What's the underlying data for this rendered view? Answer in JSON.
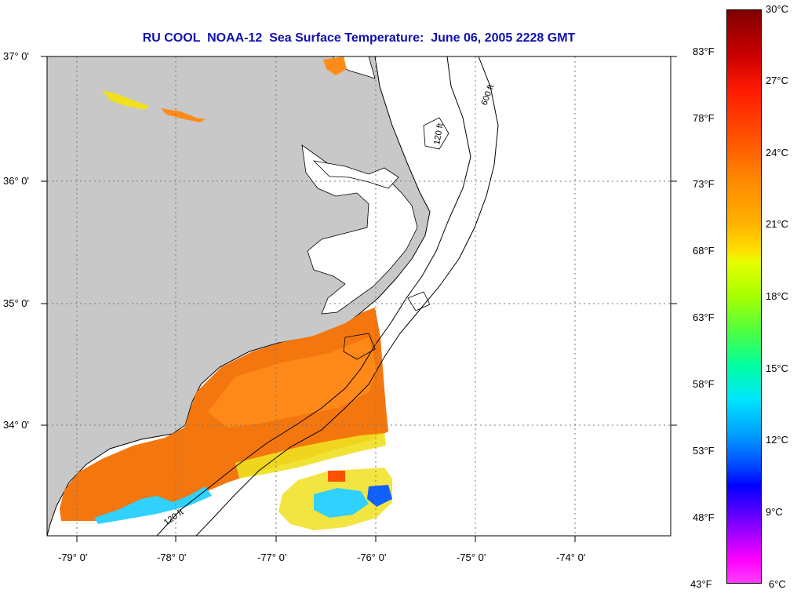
{
  "title": "RU COOL  NOAA-12  Sea Surface Temperature:  June 06, 2005 2228 GMT",
  "lat_labels": [
    {
      "text": "37° 0'",
      "lat": 37
    },
    {
      "text": "36° 0'",
      "lat": 36
    },
    {
      "text": "35° 0'",
      "lat": 35
    },
    {
      "text": "34° 0'",
      "lat": 34
    }
  ],
  "lon_labels": [
    {
      "text": "-79° 0'",
      "lon": -79
    },
    {
      "text": "-78° 0'",
      "lon": -78
    },
    {
      "text": "-77° 0'",
      "lon": -77
    },
    {
      "text": "-76° 0'",
      "lon": -76
    },
    {
      "text": "-75° 0'",
      "lon": -75
    },
    {
      "text": "-74° 0'",
      "lon": -74
    }
  ],
  "fahrenheit_labels": [
    "83°F",
    "78°F",
    "73°F",
    "68°F",
    "63°F",
    "58°F",
    "53°F",
    "48°F",
    "43°F"
  ],
  "celsius_labels": [
    "30°C",
    "27°C",
    "24°C",
    "21°C",
    "18°C",
    "15°C",
    "12°C",
    "9°C",
    "6°C"
  ],
  "contour_labels": [
    "120 ft",
    "600 ft"
  ],
  "colors": {
    "title": "#1010b0",
    "land": "#c8c8c8",
    "ocean": "#ffffff",
    "sst_warm": "#ff8c1a",
    "sst_orange": "#f4760e",
    "sst_cool_yellow": "#f0e020",
    "sst_cool_cyan": "#30d0ff",
    "sst_cool_blue": "#1060ff"
  }
}
